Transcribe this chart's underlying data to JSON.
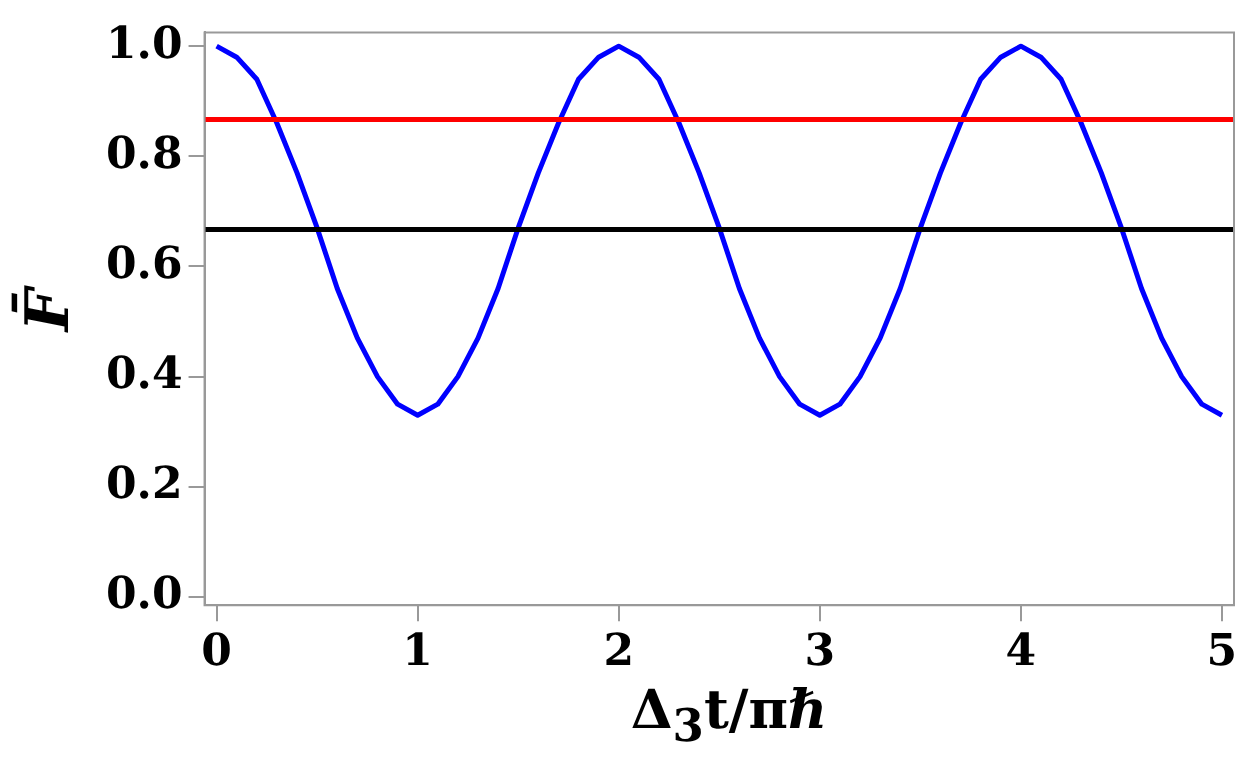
{
  "chart_data": {
    "type": "line",
    "xlabel": "Δ$_{3}$t/πℏ",
    "ylabel": "F̄",
    "x": [
      0,
      0.1,
      0.2,
      0.3,
      0.4,
      0.5,
      0.6,
      0.7,
      0.8,
      0.9,
      1,
      1.1,
      1.2,
      1.3,
      1.4,
      1.5,
      1.6,
      1.7,
      1.8,
      1.9,
      2,
      2.1,
      2.2,
      2.3,
      2.4,
      2.5,
      2.6,
      2.7,
      2.8,
      2.9,
      3,
      3.1,
      3.2,
      3.3,
      3.4,
      3.5,
      3.6,
      3.7,
      3.8,
      3.9,
      4,
      4.1,
      4.2,
      4.3,
      4.4,
      4.5,
      4.6,
      4.7,
      4.8,
      4.9,
      5
    ],
    "series": [
      {
        "color": "#0000ff",
        "values": [
          1,
          0.98,
          0.94,
          0.86,
          0.77,
          0.67,
          0.56,
          0.47,
          0.4,
          0.35,
          0.33,
          0.35,
          0.4,
          0.47,
          0.56,
          0.67,
          0.77,
          0.86,
          0.94,
          0.98,
          1,
          0.98,
          0.94,
          0.86,
          0.77,
          0.67,
          0.56,
          0.47,
          0.4,
          0.35,
          0.33,
          0.35,
          0.4,
          0.47,
          0.56,
          0.67,
          0.77,
          0.86,
          0.94,
          0.98,
          1,
          0.98,
          0.94,
          0.86,
          0.77,
          0.67,
          0.56,
          0.47,
          0.4,
          0.35,
          0.33
        ]
      }
    ],
    "ref_lines": [
      {
        "axis": "y",
        "value": 0.867,
        "color": "#ff0000"
      },
      {
        "axis": "y",
        "value": 0.667,
        "color": "#000000"
      }
    ],
    "xlim": [
      -0.06,
      5.06
    ],
    "ylim": [
      -0.015,
      1.025
    ],
    "xticks": [
      0,
      1,
      2,
      3,
      4,
      5
    ],
    "yticks": [
      {
        "value": 0,
        "label": "0.0"
      },
      0.2,
      0.4,
      0.6,
      0.8,
      {
        "value": 1,
        "label": "1.0"
      }
    ],
    "grid": false,
    "legend": false,
    "marker": "none",
    "line_style": "solid"
  }
}
